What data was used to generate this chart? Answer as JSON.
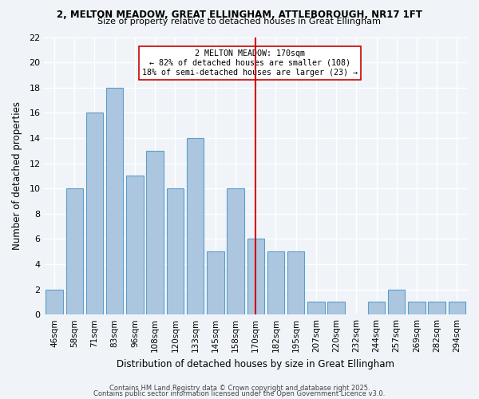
{
  "title1": "2, MELTON MEADOW, GREAT ELLINGHAM, ATTLEBOROUGH, NR17 1FT",
  "title2": "Size of property relative to detached houses in Great Ellingham",
  "xlabel": "Distribution of detached houses by size in Great Ellingham",
  "ylabel": "Number of detached properties",
  "categories": [
    "46sqm",
    "58sqm",
    "71sqm",
    "83sqm",
    "96sqm",
    "108sqm",
    "120sqm",
    "133sqm",
    "145sqm",
    "158sqm",
    "170sqm",
    "182sqm",
    "195sqm",
    "207sqm",
    "220sqm",
    "232sqm",
    "244sqm",
    "257sqm",
    "269sqm",
    "282sqm",
    "294sqm"
  ],
  "values": [
    2,
    10,
    16,
    18,
    11,
    13,
    10,
    14,
    5,
    10,
    6,
    5,
    5,
    1,
    1,
    0,
    1,
    2,
    1,
    1,
    1
  ],
  "bar_color": "#adc6e0",
  "bar_edge_color": "#5a9ec9",
  "vline_x": 10,
  "vline_color": "#cc0000",
  "annotation_text": "2 MELTON MEADOW: 170sqm\n← 82% of detached houses are smaller (108)\n18% of semi-detached houses are larger (23) →",
  "annotation_box_color": "#ffffff",
  "annotation_box_edge": "#cc0000",
  "ylim": [
    0,
    22
  ],
  "yticks": [
    0,
    2,
    4,
    6,
    8,
    10,
    12,
    14,
    16,
    18,
    20,
    22
  ],
  "footer1": "Contains HM Land Registry data © Crown copyright and database right 2025.",
  "footer2": "Contains public sector information licensed under the Open Government Licence v3.0.",
  "bg_color": "#f0f4f8",
  "grid_color": "#ffffff"
}
